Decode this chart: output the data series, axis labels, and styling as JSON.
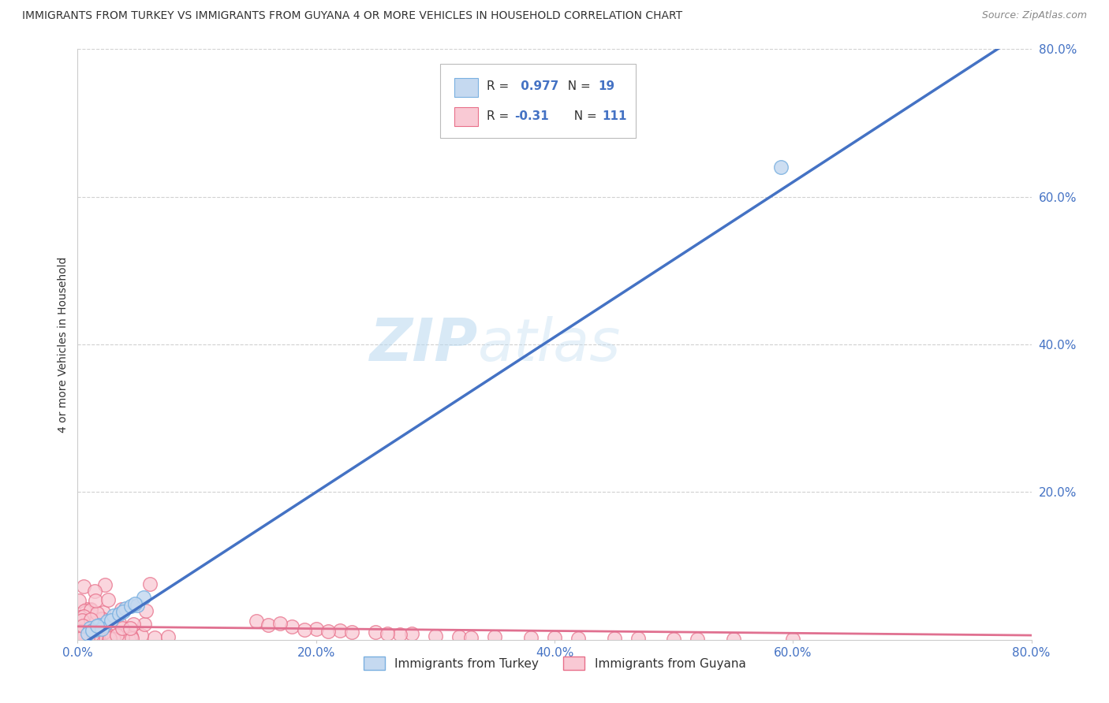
{
  "title": "IMMIGRANTS FROM TURKEY VS IMMIGRANTS FROM GUYANA 4 OR MORE VEHICLES IN HOUSEHOLD CORRELATION CHART",
  "source": "Source: ZipAtlas.com",
  "ylabel": "4 or more Vehicles in Household",
  "xlim": [
    0.0,
    0.8
  ],
  "ylim": [
    0.0,
    0.8
  ],
  "xtick_labels": [
    "0.0%",
    "20.0%",
    "40.0%",
    "60.0%",
    "80.0%"
  ],
  "xtick_vals": [
    0.0,
    0.2,
    0.4,
    0.6,
    0.8
  ],
  "ytick_labels": [
    "20.0%",
    "40.0%",
    "60.0%",
    "80.0%"
  ],
  "ytick_vals": [
    0.2,
    0.4,
    0.6,
    0.8
  ],
  "grid_color": "#cccccc",
  "background_color": "#ffffff",
  "turkey_color": "#c5d9f0",
  "turkey_edge_color": "#7ab0e0",
  "guyana_color": "#f9c9d4",
  "guyana_edge_color": "#e8708a",
  "turkey_R": 0.977,
  "turkey_N": 19,
  "guyana_R": -0.31,
  "guyana_N": 111,
  "turkey_line_color": "#4472c4",
  "guyana_line_color": "#e07090",
  "watermark_zip": "ZIP",
  "watermark_atlas": "atlas",
  "legend_turkey": "Immigrants from Turkey",
  "legend_guyana": "Immigrants from Guyana",
  "r_n_color": "#4472c4",
  "tick_color": "#4472c4",
  "title_color": "#333333",
  "source_color": "#888888"
}
